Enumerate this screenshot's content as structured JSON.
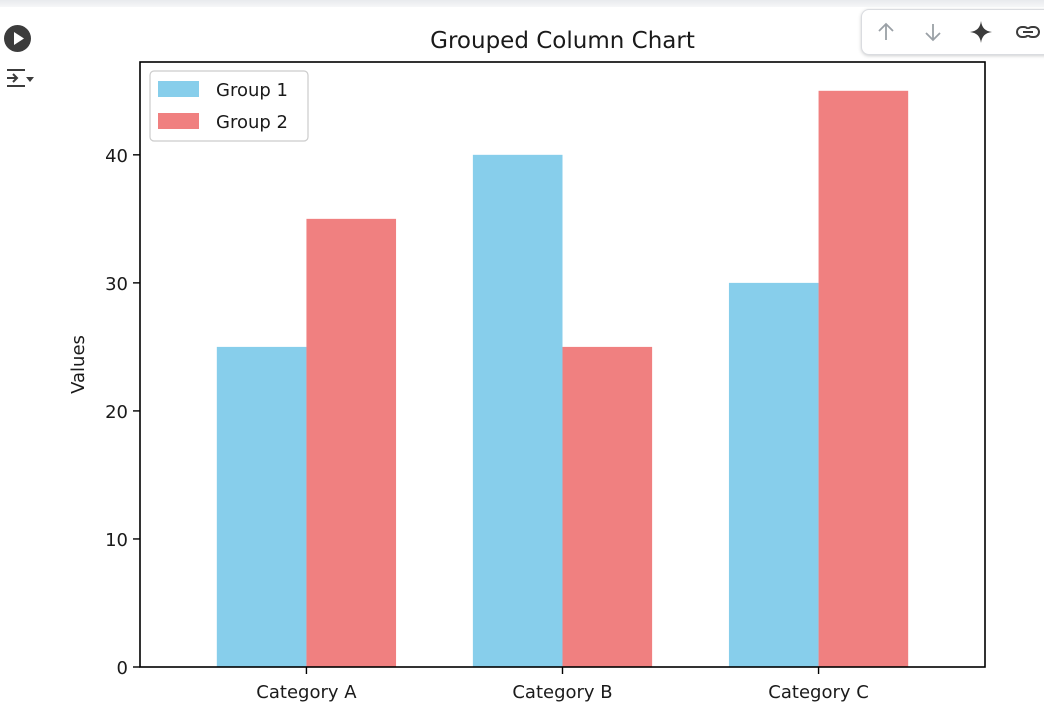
{
  "toolbar": {
    "buttons": [
      {
        "name": "move-cell-up",
        "icon": "arrow-up-icon"
      },
      {
        "name": "move-cell-down",
        "icon": "arrow-down-icon"
      },
      {
        "name": "gemini",
        "icon": "sparkle-icon"
      },
      {
        "name": "copy-link",
        "icon": "link-icon"
      }
    ]
  },
  "gutter": {
    "run_icon": "play-circle-icon",
    "output_icon": "output-actions-icon"
  },
  "chart_data": {
    "type": "bar",
    "title": "Grouped Column Chart",
    "xlabel": "",
    "ylabel": "Values",
    "categories": [
      "Category A",
      "Category B",
      "Category C"
    ],
    "series": [
      {
        "name": "Group 1",
        "values": [
          25,
          40,
          30
        ],
        "color": "#87ceeb"
      },
      {
        "name": "Group 2",
        "values": [
          35,
          25,
          45
        ],
        "color": "#f08080"
      }
    ],
    "ylim": [
      0,
      47.25
    ],
    "yticks": [
      0,
      10,
      20,
      30,
      40
    ],
    "legend": "top-left",
    "grid": false
  }
}
